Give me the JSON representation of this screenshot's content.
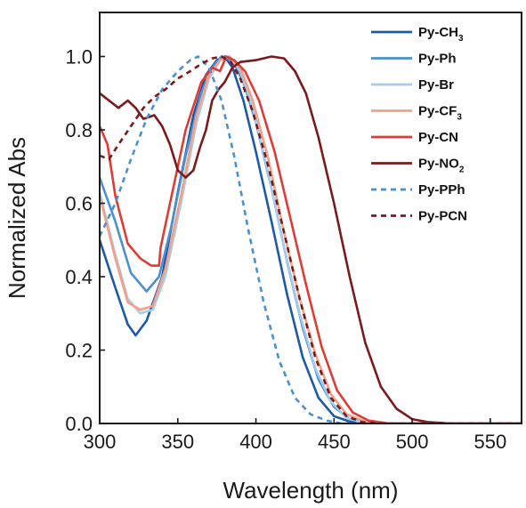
{
  "chart_data": {
    "type": "line",
    "xlabel": "Wavelength (nm)",
    "ylabel": "Normalized Abs",
    "xlim": [
      300,
      570
    ],
    "ylim": [
      0,
      1.12
    ],
    "x_ticks": [
      "300",
      "350",
      "400",
      "450",
      "500",
      "550"
    ],
    "y_ticks": [
      "0.0",
      "0.2",
      "0.4",
      "0.6",
      "0.8",
      "1.0"
    ],
    "x_tick_values": [
      300,
      350,
      400,
      450,
      500,
      550
    ],
    "y_tick_values": [
      0,
      0.2,
      0.4,
      0.6,
      0.8,
      1.0
    ],
    "grid": false,
    "legend_position": "top-right",
    "series": [
      {
        "name": "Py-CH",
        "sub": "3",
        "color": "#1d5aa6",
        "dash": false,
        "points": [
          [
            300,
            0.5
          ],
          [
            310,
            0.37
          ],
          [
            318,
            0.27
          ],
          [
            323,
            0.24
          ],
          [
            330,
            0.28
          ],
          [
            340,
            0.4
          ],
          [
            350,
            0.63
          ],
          [
            360,
            0.84
          ],
          [
            368,
            0.95
          ],
          [
            375,
            0.99
          ],
          [
            380,
            1.0
          ],
          [
            385,
            0.97
          ],
          [
            392,
            0.88
          ],
          [
            400,
            0.74
          ],
          [
            410,
            0.55
          ],
          [
            420,
            0.35
          ],
          [
            430,
            0.18
          ],
          [
            440,
            0.07
          ],
          [
            450,
            0.02
          ],
          [
            460,
            0.005
          ],
          [
            475,
            0
          ],
          [
            570,
            0
          ]
        ]
      },
      {
        "name": "Py-Ph",
        "sub": "",
        "color": "#4b90cf",
        "dash": false,
        "points": [
          [
            300,
            0.67
          ],
          [
            310,
            0.55
          ],
          [
            320,
            0.41
          ],
          [
            330,
            0.36
          ],
          [
            338,
            0.4
          ],
          [
            346,
            0.54
          ],
          [
            355,
            0.73
          ],
          [
            365,
            0.9
          ],
          [
            372,
            0.97
          ],
          [
            378,
            1.0
          ],
          [
            385,
            0.99
          ],
          [
            392,
            0.93
          ],
          [
            400,
            0.82
          ],
          [
            410,
            0.64
          ],
          [
            420,
            0.44
          ],
          [
            430,
            0.26
          ],
          [
            440,
            0.12
          ],
          [
            450,
            0.045
          ],
          [
            460,
            0.012
          ],
          [
            475,
            0
          ],
          [
            570,
            0
          ]
        ]
      },
      {
        "name": "Py-Br",
        "sub": "",
        "color": "#a7cbea",
        "dash": false,
        "points": [
          [
            300,
            0.63
          ],
          [
            310,
            0.46
          ],
          [
            318,
            0.34
          ],
          [
            326,
            0.3
          ],
          [
            334,
            0.31
          ],
          [
            342,
            0.4
          ],
          [
            352,
            0.6
          ],
          [
            362,
            0.82
          ],
          [
            370,
            0.94
          ],
          [
            377,
            0.99
          ],
          [
            383,
            1.0
          ],
          [
            390,
            0.96
          ],
          [
            398,
            0.86
          ],
          [
            408,
            0.68
          ],
          [
            418,
            0.48
          ],
          [
            428,
            0.3
          ],
          [
            438,
            0.15
          ],
          [
            448,
            0.06
          ],
          [
            458,
            0.015
          ],
          [
            470,
            0
          ],
          [
            570,
            0
          ]
        ]
      },
      {
        "name": "Py-CF",
        "sub": "3",
        "color": "#f2a187",
        "dash": false,
        "points": [
          [
            300,
            0.62
          ],
          [
            310,
            0.45
          ],
          [
            318,
            0.33
          ],
          [
            326,
            0.31
          ],
          [
            334,
            0.32
          ],
          [
            342,
            0.42
          ],
          [
            352,
            0.62
          ],
          [
            362,
            0.84
          ],
          [
            370,
            0.95
          ],
          [
            377,
            0.99
          ],
          [
            383,
            1.0
          ],
          [
            390,
            0.97
          ],
          [
            398,
            0.88
          ],
          [
            408,
            0.72
          ],
          [
            418,
            0.52
          ],
          [
            428,
            0.34
          ],
          [
            438,
            0.19
          ],
          [
            448,
            0.08
          ],
          [
            458,
            0.025
          ],
          [
            470,
            0.005
          ],
          [
            480,
            0
          ],
          [
            570,
            0
          ]
        ]
      },
      {
        "name": "Py-CN",
        "sub": "",
        "color": "#e03b35",
        "dash": false,
        "points": [
          [
            300,
            0.81
          ],
          [
            305,
            0.76
          ],
          [
            310,
            0.62
          ],
          [
            318,
            0.49
          ],
          [
            326,
            0.45
          ],
          [
            333,
            0.43
          ],
          [
            338,
            0.43
          ],
          [
            339,
            0.48
          ],
          [
            345,
            0.6
          ],
          [
            355,
            0.8
          ],
          [
            365,
            0.93
          ],
          [
            372,
            0.97
          ],
          [
            377,
            0.96
          ],
          [
            381,
            1.0
          ],
          [
            386,
            0.99
          ],
          [
            393,
            0.96
          ],
          [
            402,
            0.88
          ],
          [
            412,
            0.74
          ],
          [
            422,
            0.56
          ],
          [
            432,
            0.38
          ],
          [
            442,
            0.21
          ],
          [
            452,
            0.09
          ],
          [
            462,
            0.03
          ],
          [
            472,
            0.008
          ],
          [
            485,
            0
          ],
          [
            570,
            0
          ]
        ]
      },
      {
        "name": "Py-NO",
        "sub": "2",
        "color": "#7a1a1c",
        "dash": false,
        "points": [
          [
            300,
            0.9
          ],
          [
            306,
            0.88
          ],
          [
            312,
            0.86
          ],
          [
            318,
            0.88
          ],
          [
            323,
            0.86
          ],
          [
            328,
            0.83
          ],
          [
            335,
            0.84
          ],
          [
            340,
            0.81
          ],
          [
            345,
            0.76
          ],
          [
            350,
            0.69
          ],
          [
            355,
            0.67
          ],
          [
            360,
            0.69
          ],
          [
            364,
            0.75
          ],
          [
            368,
            0.8
          ],
          [
            372,
            0.88
          ],
          [
            376,
            0.91
          ],
          [
            380,
            0.93
          ],
          [
            385,
            0.97
          ],
          [
            390,
            0.985
          ],
          [
            400,
            0.99
          ],
          [
            410,
            1.0
          ],
          [
            418,
            0.995
          ],
          [
            425,
            0.96
          ],
          [
            432,
            0.9
          ],
          [
            440,
            0.78
          ],
          [
            450,
            0.6
          ],
          [
            460,
            0.4
          ],
          [
            470,
            0.22
          ],
          [
            480,
            0.1
          ],
          [
            490,
            0.04
          ],
          [
            500,
            0.012
          ],
          [
            510,
            0.004
          ],
          [
            525,
            0
          ],
          [
            570,
            0
          ]
        ]
      },
      {
        "name": "Py-PPh",
        "sub": "",
        "color": "#4b90cf",
        "dash": true,
        "points": [
          [
            300,
            0.51
          ],
          [
            310,
            0.6
          ],
          [
            320,
            0.72
          ],
          [
            330,
            0.83
          ],
          [
            340,
            0.91
          ],
          [
            350,
            0.96
          ],
          [
            358,
            0.99
          ],
          [
            363,
            1.0
          ],
          [
            370,
            0.97
          ],
          [
            378,
            0.88
          ],
          [
            386,
            0.73
          ],
          [
            395,
            0.53
          ],
          [
            405,
            0.33
          ],
          [
            415,
            0.17
          ],
          [
            425,
            0.07
          ],
          [
            435,
            0.025
          ],
          [
            445,
            0.008
          ],
          [
            455,
            0
          ],
          [
            570,
            0
          ]
        ]
      },
      {
        "name": "Py-PCN",
        "sub": "",
        "color": "#7a1a1c",
        "dash": true,
        "points": [
          [
            300,
            0.73
          ],
          [
            306,
            0.72
          ],
          [
            312,
            0.76
          ],
          [
            320,
            0.81
          ],
          [
            328,
            0.86
          ],
          [
            335,
            0.89
          ],
          [
            342,
            0.91
          ],
          [
            350,
            0.94
          ],
          [
            358,
            0.96
          ],
          [
            365,
            0.98
          ],
          [
            372,
            0.995
          ],
          [
            378,
            1.0
          ],
          [
            384,
            0.985
          ],
          [
            390,
            0.94
          ],
          [
            398,
            0.85
          ],
          [
            408,
            0.7
          ],
          [
            418,
            0.52
          ],
          [
            428,
            0.34
          ],
          [
            438,
            0.18
          ],
          [
            448,
            0.07
          ],
          [
            458,
            0.02
          ],
          [
            468,
            0.004
          ],
          [
            480,
            0
          ],
          [
            570,
            0
          ]
        ]
      }
    ]
  }
}
